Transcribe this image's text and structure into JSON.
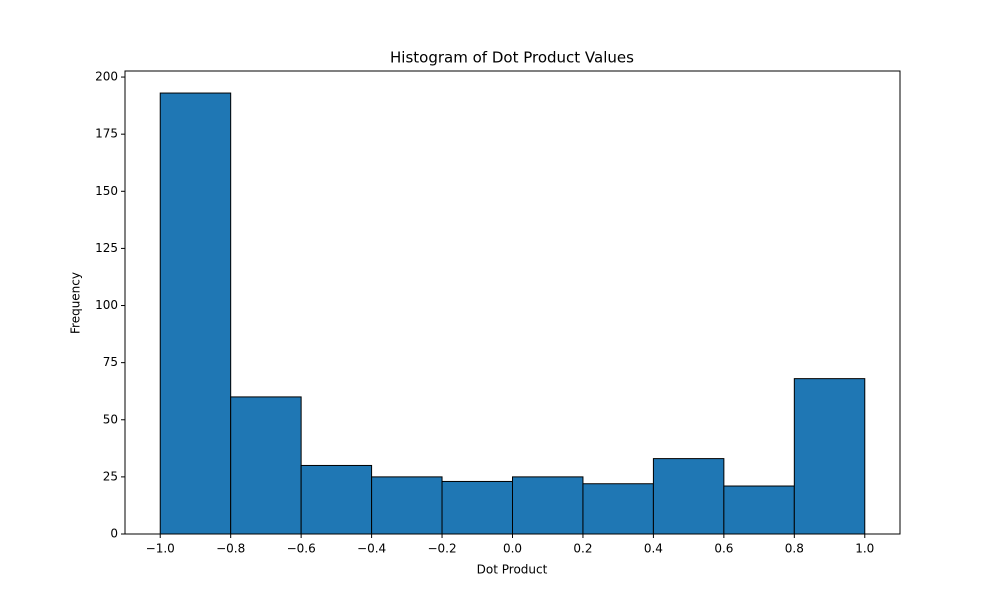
{
  "chart_data": {
    "type": "histogram",
    "title": "Histogram of Dot Product Values",
    "x_label": "Dot Product",
    "y_label": "Frequency",
    "bins": [
      -1.0,
      -0.8,
      -0.6,
      -0.4,
      -0.2,
      0.0,
      0.2,
      0.4,
      0.6,
      0.8,
      1.0
    ],
    "values": [
      193,
      60,
      30,
      25,
      23,
      25,
      22,
      33,
      21,
      68
    ],
    "color": "#1f77b4",
    "edgecolor": "#000000",
    "xlim": [
      -1.1,
      1.1
    ],
    "xticks": [
      {
        "value": -1.0,
        "label": "−1.0"
      },
      {
        "value": -0.8,
        "label": "−0.8"
      },
      {
        "value": -0.6,
        "label": "−0.6"
      },
      {
        "value": -0.4,
        "label": "−0.4"
      },
      {
        "value": -0.2,
        "label": "−0.2"
      },
      {
        "value": 0.0,
        "label": "0.0"
      },
      0.2,
      0.4,
      0.6,
      0.8,
      {
        "value": 1.0,
        "label": "1.0"
      }
    ],
    "ylim": [
      0,
      202.65
    ],
    "yticks": [
      0,
      25,
      50,
      75,
      100,
      125,
      150,
      175,
      200
    ]
  }
}
